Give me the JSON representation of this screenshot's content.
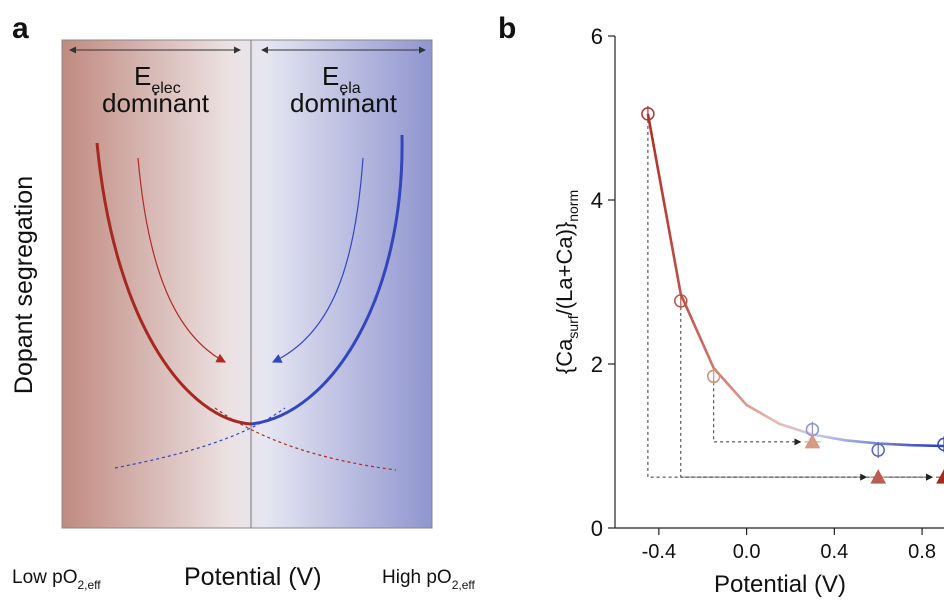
{
  "panel_a": {
    "letter": "a",
    "elec_main": "E",
    "elec_sub": "elec",
    "elec_word": "dominant",
    "ela_main": "E",
    "ela_sub": "ela",
    "ela_word": "dominant",
    "ylabel": "Dopant segregation",
    "low_main": "Low pO",
    "low_sub": "2,eff",
    "xlabel": "Potential (V)",
    "high_main": "High pO",
    "high_sub": "2,eff",
    "colors": {
      "red": "#b02a22",
      "blue": "#3346bf",
      "left_bg": "#c08a80",
      "right_bg": "#8f95cf"
    }
  },
  "panel_b": {
    "letter": "b",
    "ylabel_pre": "{Ca",
    "ylabel_sub1": "surf",
    "ylabel_mid": "/(La+Ca)}",
    "ylabel_sub2": "norm",
    "xlabel": "Potential (V)",
    "xticks": [
      "-0.4",
      "0.0",
      "0.4",
      "0.8"
    ],
    "yticks": [
      "0",
      "2",
      "4",
      "6"
    ]
  },
  "chart_data": {
    "type": "scatter",
    "xlabel": "Potential (V)",
    "ylabel": "{Casurf/(La+Ca)}norm",
    "xlim": [
      -0.6,
      0.9
    ],
    "ylim": [
      0,
      6
    ],
    "series": [
      {
        "points": [
          {
            "x": -0.45,
            "y": 5.05,
            "color": "#b23530"
          },
          {
            "x": -0.3,
            "y": 2.77,
            "color": "#b85548"
          },
          {
            "x": -0.15,
            "y": 1.85,
            "color": "#d09078"
          },
          {
            "x": 0.3,
            "y": 1.2,
            "color": "#8c93d2"
          },
          {
            "x": 0.6,
            "y": 0.95,
            "color": "#5a65c4"
          },
          {
            "x": 0.9,
            "y": 1.02,
            "color": "#3346bf"
          }
        ]
      },
      {
        "points": [
          {
            "x": 0.3,
            "y": 1.05,
            "color": "#d49a82"
          },
          {
            "x": 0.6,
            "y": 0.62,
            "color": "#b8604f"
          },
          {
            "x": 0.9,
            "y": 0.62,
            "color": "#a22a20"
          }
        ]
      }
    ],
    "fit_curve": {
      "x": [
        -0.45,
        -0.3,
        -0.15,
        0.0,
        0.15,
        0.3,
        0.45,
        0.6,
        0.75,
        0.9
      ],
      "y": [
        5.05,
        2.85,
        1.95,
        1.5,
        1.27,
        1.14,
        1.07,
        1.03,
        1.01,
        1.0
      ]
    }
  }
}
